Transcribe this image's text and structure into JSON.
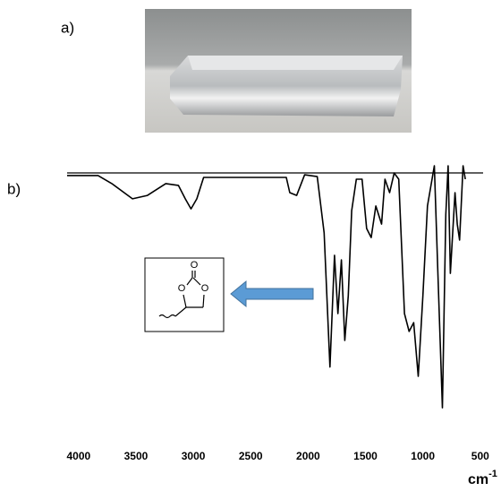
{
  "panel_labels": [
    "a)",
    "b)"
  ],
  "structure": {
    "atoms": [
      "O",
      "O",
      "O"
    ]
  },
  "chart_data": {
    "type": "line",
    "x_label": "cm",
    "x_label_exponent": "-1",
    "xlim": [
      4100,
      475
    ],
    "ylim": [
      0,
      100
    ],
    "xticks": [
      4000,
      3500,
      3000,
      2500,
      2000,
      1500,
      1000,
      500
    ],
    "series": [
      {
        "color": "#000000",
        "x": [
          4100,
          3830,
          3710,
          3530,
          3400,
          3240,
          3130,
          3070,
          3020,
          2970,
          2910,
          2190,
          2160,
          2100,
          2030,
          1920,
          1860,
          1810,
          1770,
          1740,
          1710,
          1680,
          1650,
          1620,
          1580,
          1530,
          1490,
          1450,
          1410,
          1360,
          1330,
          1290,
          1250,
          1210,
          1160,
          1120,
          1080,
          1040,
          1000,
          960,
          900,
          870,
          830,
          800,
          780,
          760,
          720,
          700,
          680,
          650,
          630
        ],
        "values": [
          96.2,
          96.2,
          93.1,
          87.2,
          88.5,
          93.1,
          92.4,
          87.2,
          83.3,
          87.2,
          95.5,
          95.5,
          89.6,
          88.5,
          96.5,
          95.8,
          74,
          22,
          65.3,
          42.7,
          63.5,
          32.3,
          49.7,
          82.6,
          94.8,
          94.8,
          75.7,
          72.2,
          84.4,
          77.4,
          94.8,
          89.6,
          97.2,
          94.8,
          42.7,
          35.8,
          39.2,
          18.4,
          49.7,
          84.4,
          100,
          60,
          6.2,
          81,
          100,
          58.3,
          89.6,
          77.4,
          71.2,
          100,
          94.8
        ]
      }
    ]
  }
}
